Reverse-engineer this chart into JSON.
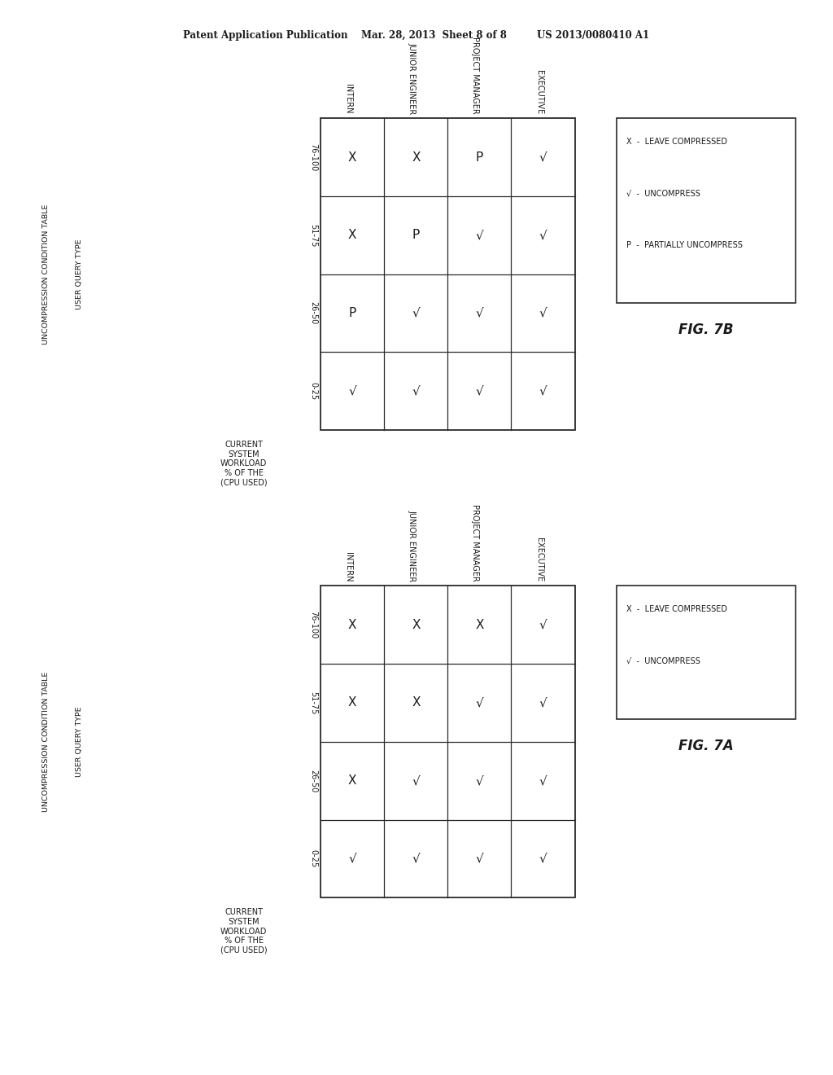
{
  "header_text": "Patent Application Publication    Mar. 28, 2013  Sheet 8 of 8         US 2013/0080410 A1",
  "fig_a": {
    "title": "FIG. 7A",
    "side_label1": "UNCOMPRESSION CONDITION TABLE",
    "side_label2": "USER QUERY TYPE",
    "col_headers_top": [
      "INTERN",
      "JUNIOR ENGINEER",
      "PROJECT MANAGER",
      "EXECUTIVE"
    ],
    "row_headers_left": [
      "76-100",
      "51-75",
      "26-50",
      "0-25"
    ],
    "xlabel_lines": [
      "CURRENT",
      "SYSTEM",
      "WORKLOAD",
      "% OF THE",
      "(CPU USED)"
    ],
    "data": [
      [
        "X",
        "X",
        "X",
        "√"
      ],
      [
        "X",
        "X",
        "√",
        "√"
      ],
      [
        "X",
        "√",
        "√",
        "√"
      ],
      [
        "√",
        "√",
        "√",
        "√"
      ]
    ],
    "legend_lines": [
      "X  -  LEAVE COMPRESSED",
      "√  -  UNCOMPRESS"
    ]
  },
  "fig_b": {
    "title": "FIG. 7B",
    "side_label1": "UNCOMPRESSION CONDITION TABLE",
    "side_label2": "USER QUERY TYPE",
    "col_headers_top": [
      "INTERN",
      "JUNIOR ENGINEER",
      "PROJECT MANAGER",
      "EXECUTIVE"
    ],
    "row_headers_left": [
      "76-100",
      "51-75",
      "26-50",
      "0-25"
    ],
    "xlabel_lines": [
      "CURRENT",
      "SYSTEM",
      "WORKLOAD",
      "% OF THE",
      "(CPU USED)"
    ],
    "data": [
      [
        "X",
        "X",
        "P",
        "√"
      ],
      [
        "X",
        "P",
        "√",
        "√"
      ],
      [
        "P",
        "√",
        "√",
        "√"
      ],
      [
        "√",
        "√",
        "√",
        "√"
      ]
    ],
    "legend_lines": [
      "X  -  LEAVE COMPRESSED",
      "√  -  UNCOMPRESS",
      "P  -  PARTIALLY UNCOMPRESS"
    ]
  },
  "bg_color": "#ffffff",
  "text_color": "#1a1a1a",
  "grid_color": "#2a2a2a",
  "lw": 0.9
}
